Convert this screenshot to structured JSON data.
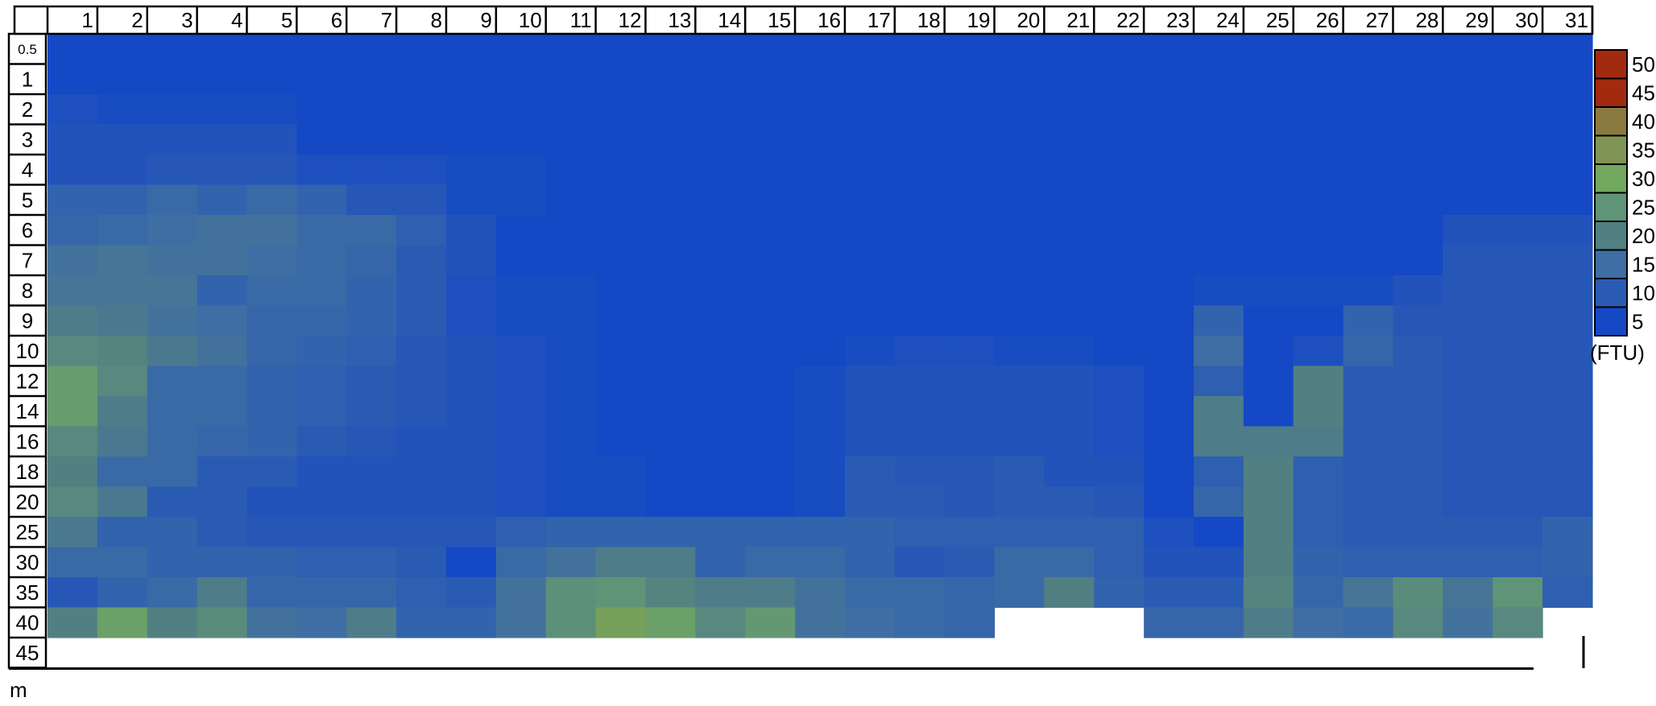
{
  "chart_data": {
    "type": "heatmap",
    "x_categories": [
      "1",
      "2",
      "3",
      "4",
      "5",
      "6",
      "7",
      "8",
      "9",
      "10",
      "11",
      "12",
      "13",
      "14",
      "15",
      "16",
      "17",
      "18",
      "19",
      "20",
      "21",
      "22",
      "23",
      "24",
      "25",
      "26",
      "27",
      "28",
      "29",
      "30",
      "31"
    ],
    "y_categories": [
      "0.5",
      "1",
      "2",
      "3",
      "4",
      "5",
      "6",
      "7",
      "8",
      "9",
      "10",
      "12",
      "14",
      "16",
      "18",
      "20",
      "25",
      "30",
      "35",
      "40",
      "45"
    ],
    "y_unit": "m",
    "legend": {
      "unit": "(FTU)",
      "levels": [
        50,
        45,
        40,
        35,
        30,
        25,
        20,
        15,
        10,
        5
      ],
      "colors": [
        "#a22a0f",
        "#a22a0f",
        "#8b7a40",
        "#7f9455",
        "#72a860",
        "#609477",
        "#528082",
        "#3e6ea3",
        "#2a5bb3",
        "#1448c5"
      ]
    },
    "values": [
      [
        3,
        3,
        3,
        3,
        3,
        3,
        3,
        3,
        3,
        3,
        3,
        3,
        3,
        3,
        3,
        3,
        3,
        3,
        3,
        3,
        3,
        3,
        3,
        4,
        5,
        5,
        4,
        4,
        4,
        4,
        4
      ],
      [
        3,
        3,
        3,
        3,
        3,
        3,
        3,
        3,
        3,
        3,
        3,
        3,
        3,
        3,
        3,
        3,
        3,
        3,
        3,
        3,
        3,
        3,
        3,
        4,
        5,
        5,
        4,
        4,
        4,
        4,
        4
      ],
      [
        7,
        6,
        6,
        6,
        6,
        3,
        3,
        3,
        3,
        5,
        4,
        4,
        4,
        4,
        4,
        4,
        4,
        4,
        4,
        4,
        4,
        4,
        4,
        4,
        5,
        5,
        4,
        4,
        4,
        4,
        4
      ],
      [
        8,
        8,
        8,
        8,
        8,
        3,
        3,
        3,
        5,
        5,
        5,
        4,
        4,
        4,
        4,
        4,
        4,
        4,
        4,
        4,
        4,
        4,
        4,
        4,
        5,
        5,
        4,
        4,
        4,
        4,
        4
      ],
      [
        8,
        8,
        9,
        9,
        9,
        7,
        7,
        7,
        6,
        6,
        5,
        4,
        4,
        4,
        4,
        4,
        4,
        4,
        4,
        4,
        4,
        4,
        4,
        4,
        5,
        5,
        4,
        4,
        4,
        4,
        4
      ],
      [
        12,
        12,
        14,
        12,
        14,
        12,
        9,
        9,
        6,
        6,
        5,
        5,
        4,
        4,
        4,
        4,
        4,
        4,
        4,
        4,
        4,
        4,
        4,
        4,
        5,
        5,
        4,
        4,
        4,
        5,
        5
      ],
      [
        13,
        14,
        15,
        16,
        16,
        14,
        14,
        11,
        8,
        5,
        5,
        5,
        4,
        4,
        4,
        4,
        4,
        4,
        4,
        4,
        4,
        4,
        4,
        4,
        5,
        5,
        4,
        5,
        8,
        8,
        8
      ],
      [
        16,
        17,
        16,
        16,
        15,
        14,
        13,
        10,
        8,
        5,
        5,
        5,
        5,
        4,
        4,
        4,
        4,
        4,
        4,
        4,
        4,
        4,
        4,
        4,
        5,
        5,
        4,
        5,
        9,
        9,
        9
      ],
      [
        17,
        17,
        17,
        12,
        14,
        14,
        12,
        10,
        7,
        6,
        6,
        5,
        4,
        4,
        4,
        4,
        4,
        4,
        4,
        4,
        4,
        4,
        4,
        6,
        6,
        6,
        6,
        8,
        9,
        9,
        9
      ],
      [
        19,
        18,
        16,
        15,
        13,
        13,
        12,
        10,
        7,
        6,
        6,
        5,
        4,
        4,
        4,
        4,
        4,
        4,
        5,
        4,
        4,
        4,
        4,
        12,
        3,
        3,
        12,
        9,
        9,
        9,
        9
      ],
      [
        22,
        21,
        18,
        16,
        13,
        12,
        11,
        9,
        8,
        7,
        6,
        5,
        4,
        4,
        4,
        5,
        6,
        7,
        7,
        6,
        6,
        5,
        4,
        15,
        3,
        7,
        13,
        10,
        9,
        9,
        9
      ],
      [
        27,
        22,
        14,
        14,
        12,
        11,
        10,
        9,
        8,
        7,
        6,
        5,
        4,
        4,
        4,
        6,
        8,
        8,
        8,
        8,
        8,
        7,
        5,
        11,
        5,
        20,
        10,
        10,
        9,
        9,
        9
      ],
      [
        27,
        19,
        14,
        14,
        12,
        11,
        10,
        9,
        8,
        7,
        6,
        5,
        4,
        4,
        4,
        6,
        8,
        8,
        8,
        8,
        8,
        7,
        5,
        19,
        5,
        20,
        10,
        10,
        9,
        9,
        9
      ],
      [
        22,
        18,
        14,
        13,
        12,
        10,
        9,
        8,
        8,
        7,
        6,
        5,
        4,
        4,
        4,
        6,
        8,
        8,
        8,
        8,
        8,
        7,
        5,
        19,
        19,
        19,
        10,
        10,
        9,
        9,
        9
      ],
      [
        20,
        14,
        14,
        10,
        10,
        8,
        8,
        8,
        8,
        7,
        6,
        6,
        4,
        4,
        4,
        6,
        10,
        9,
        9,
        10,
        8,
        8,
        5,
        11,
        20,
        11,
        10,
        10,
        9,
        9,
        9
      ],
      [
        22,
        18,
        10,
        10,
        8,
        8,
        8,
        8,
        8,
        7,
        6,
        6,
        5,
        5,
        5,
        6,
        10,
        10,
        9,
        10,
        10,
        9,
        5,
        13,
        20,
        11,
        10,
        10,
        9,
        9,
        9
      ],
      [
        18,
        12,
        12,
        10,
        9,
        9,
        9,
        9,
        9,
        11,
        12,
        12,
        12,
        12,
        12,
        12,
        12,
        11,
        11,
        11,
        11,
        11,
        7,
        3,
        20,
        11,
        10,
        10,
        10,
        10,
        12
      ],
      [
        14,
        14,
        12,
        12,
        12,
        11,
        11,
        10,
        3,
        14,
        16,
        19,
        19,
        12,
        14,
        14,
        12,
        9,
        10,
        14,
        14,
        11,
        8,
        8,
        20,
        12,
        11,
        11,
        11,
        11,
        12
      ],
      [
        9,
        12,
        14,
        19,
        13,
        13,
        13,
        11,
        10,
        16,
        24,
        25,
        21,
        19,
        19,
        16,
        14,
        14,
        13,
        14,
        20,
        12,
        10,
        10,
        21,
        13,
        17,
        23,
        17,
        25,
        11
      ],
      [
        20,
        28,
        20,
        23,
        16,
        15,
        19,
        12,
        12,
        16,
        24,
        32,
        28,
        22,
        26,
        16,
        15,
        14,
        13,
        null,
        null,
        null,
        13,
        13,
        19,
        15,
        14,
        22,
        16,
        22,
        null
      ],
      [
        null,
        null,
        null,
        null,
        null,
        null,
        null,
        null,
        null,
        null,
        null,
        null,
        null,
        null,
        null,
        null,
        null,
        null,
        null,
        null,
        null,
        null,
        null,
        null,
        null,
        null,
        null,
        null,
        null,
        null,
        null
      ]
    ]
  }
}
